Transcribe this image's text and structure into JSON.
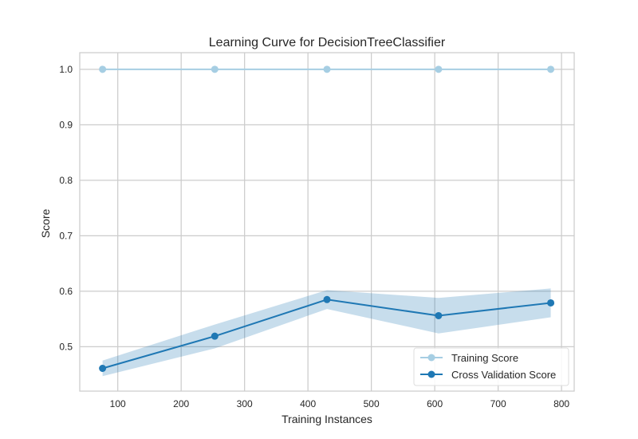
{
  "chart_data": {
    "type": "line",
    "title": "Learning Curve for DecisionTreeClassifier",
    "xlabel": "Training Instances",
    "ylabel": "Score",
    "xlim": [
      40,
      820
    ],
    "ylim": [
      0.42,
      1.03
    ],
    "xticks": [
      100,
      200,
      300,
      400,
      500,
      600,
      700,
      800
    ],
    "yticks": [
      0.5,
      0.6,
      0.7,
      0.8,
      0.9,
      1.0
    ],
    "ytick_labels": [
      "0.5",
      "0.6",
      "0.7",
      "0.8",
      "0.9",
      "1.0"
    ],
    "grid": true,
    "legend_position": "lower-right",
    "x": [
      76,
      253,
      430,
      606,
      783
    ],
    "series": [
      {
        "name": "Training Score",
        "color": "#a6cee3",
        "values": [
          1.0,
          1.0,
          1.0,
          1.0,
          1.0
        ],
        "band_lower": [
          1.0,
          1.0,
          1.0,
          1.0,
          1.0
        ],
        "band_upper": [
          1.0,
          1.0,
          1.0,
          1.0,
          1.0
        ]
      },
      {
        "name": "Cross Validation Score",
        "color": "#1f78b4",
        "values": [
          0.461,
          0.519,
          0.585,
          0.556,
          0.579
        ],
        "band_lower": [
          0.447,
          0.497,
          0.568,
          0.524,
          0.553
        ],
        "band_upper": [
          0.475,
          0.54,
          0.602,
          0.588,
          0.605
        ]
      }
    ]
  }
}
